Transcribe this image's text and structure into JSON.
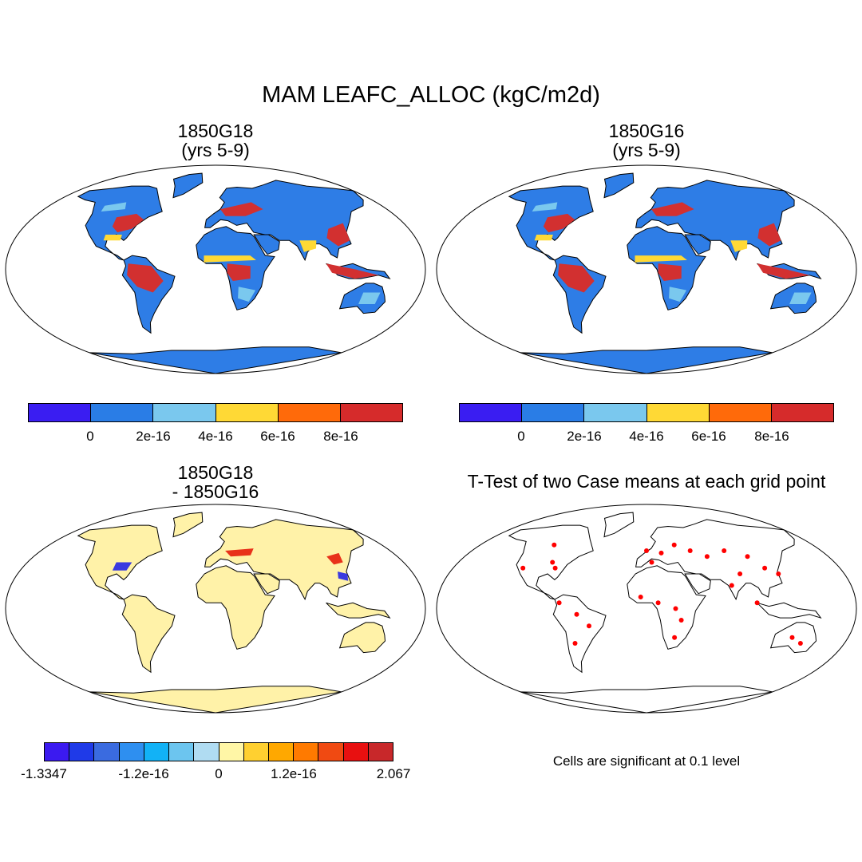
{
  "title": "MAM LEAFC_ALLOC (kgC/m2d)",
  "panels": [
    {
      "id": "p1",
      "title_lines": [
        "1850G18",
        "(yrs 5-9)"
      ]
    },
    {
      "id": "p2",
      "title_lines": [
        "1850G16",
        "(yrs 5-9)"
      ]
    },
    {
      "id": "p3",
      "title_lines": [
        "1850G18",
        "- 1850G16"
      ]
    },
    {
      "id": "p4",
      "title_lines": [
        "T-Test of two Case means at each grid point"
      ]
    }
  ],
  "colorbars": {
    "case": {
      "colors": [
        "#3a1df2",
        "#2a7de6",
        "#7ac8ee",
        "#ffd935",
        "#ff6a0a",
        "#d62b2b"
      ],
      "tick_labels": [
        "0",
        "2e-16",
        "4e-16",
        "6e-16",
        "8e-16"
      ]
    },
    "diff": {
      "colors": [
        "#3b1af0",
        "#1f3ae8",
        "#3a6be0",
        "#2e8ff0",
        "#12b2f6",
        "#6cc5ef",
        "#b0dcf2",
        "#fff6a6",
        "#ffd030",
        "#ffa800",
        "#ff7a00",
        "#f04a12",
        "#e81010",
        "#c8282a"
      ],
      "tick_labels": [
        "-1.3347",
        "-1.2e-16",
        "0",
        "1.2e-16",
        "2.067"
      ]
    }
  },
  "significance_note": "Cells are significant at 0.1 level",
  "map_colors": {
    "case_land": "#2e7de6",
    "case_high": "#d23030",
    "case_mid": "#ffd935",
    "case_light": "#7ac8ee",
    "diff_land": "#fff2a8",
    "diff_pos": "#e8321a",
    "diff_neg": "#3a3ae0",
    "sig_dot": "#ff0000",
    "outline": "#000000"
  }
}
